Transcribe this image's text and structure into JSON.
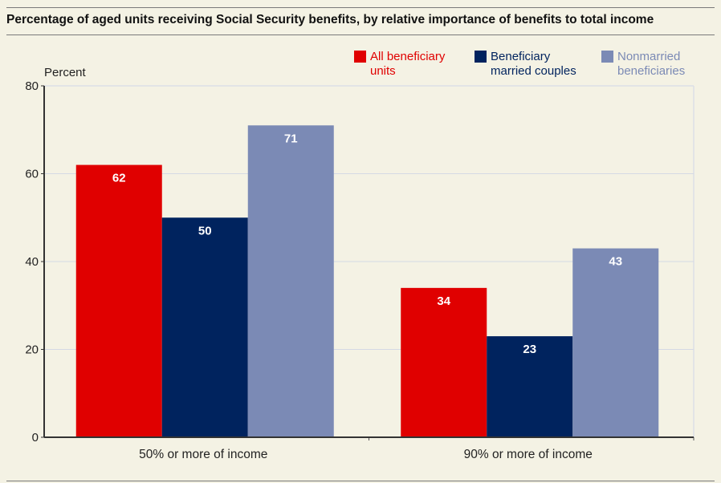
{
  "title": "Percentage of aged units receiving Social Security benefits, by relative importance of benefits to total income",
  "chart_data": {
    "type": "bar",
    "title": "Percentage of aged units receiving Social Security benefits, by relative importance of benefits to total income",
    "xlabel": "",
    "ylabel": "Percent",
    "ylim": [
      0,
      80
    ],
    "yticks": [
      0,
      20,
      40,
      60,
      80
    ],
    "grid": true,
    "legend_position": "top-right",
    "categories": [
      "50% or more of income",
      "90% or more of income"
    ],
    "series": [
      {
        "name": "All beneficiary units",
        "legend_lines": [
          "All beneficiary",
          "units"
        ],
        "color": "#e00000",
        "values": [
          62,
          34
        ]
      },
      {
        "name": "Beneficiary married couples",
        "legend_lines": [
          "Beneficiary",
          "married couples"
        ],
        "color": "#00235e",
        "values": [
          50,
          23
        ]
      },
      {
        "name": "Nonmarried beneficiaries",
        "legend_lines": [
          "Nonmarried",
          "beneficiaries"
        ],
        "color": "#7b8ab5",
        "values": [
          71,
          43
        ]
      }
    ]
  }
}
